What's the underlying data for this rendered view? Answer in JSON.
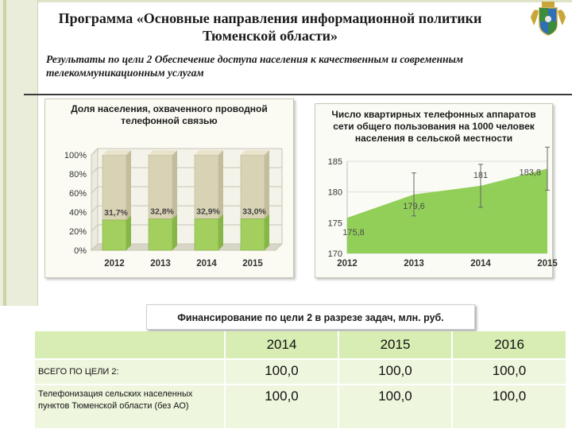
{
  "slide": {
    "title_line1": "Программа «Основные направления информационной политики",
    "title_line2": "Тюменской области»",
    "subtitle_line1": "Результаты по цели 2  Обеспечение доступа населения к качественным и современным",
    "subtitle_line2": "телекоммуникационным услугам",
    "coat_of_arms_icon": "coat-of-arms-icon"
  },
  "left_chart_title": [
    "Доля населения, охваченного  проводной",
    "телефонной связью"
  ],
  "right_chart_title": [
    "Число квартирных телефонных аппаратов",
    "сети общего пользования на 1000 человек",
    "населения в сельской местности"
  ],
  "chart_data": [
    {
      "type": "bar",
      "title": "Доля населения, охваченного  проводной телефонной связью",
      "categories": [
        "2012",
        "2013",
        "2014",
        "2015"
      ],
      "values": [
        31.7,
        32.8,
        32.9,
        33.0
      ],
      "data_labels": [
        "31,7%",
        "32,8%",
        "32,9%",
        "33,0%"
      ],
      "ylim": [
        0,
        100
      ],
      "yticks": [
        "0%",
        "20%",
        "40%",
        "60%",
        "80%",
        "100%"
      ],
      "grid": true,
      "style": "3d-stacked-percent",
      "colors": {
        "value": "#a3cf5f",
        "remainder": "#d9d3b5"
      }
    },
    {
      "type": "area",
      "title": "Число квартирных телефонных аппаратов сети общего пользования на 1000 человек населения в сельской местности",
      "x": [
        "2012",
        "2013",
        "2014",
        "2015"
      ],
      "values": [
        175.8,
        179.6,
        181,
        183.8
      ],
      "data_labels": [
        "175,8",
        "179,6",
        "181",
        "183,8"
      ],
      "ylim": [
        170,
        185
      ],
      "yticks": [
        "170",
        "175",
        "180",
        "185"
      ],
      "error_bars": true,
      "grid": true,
      "colors": {
        "area": "#8ccc50"
      }
    }
  ],
  "finance": {
    "title": "Финансирование по цели 2  в разрезе задач, млн. руб.",
    "header": [
      "",
      "2014",
      "2015",
      "2016"
    ],
    "rows": [
      {
        "label": "ВСЕГО ПО ЦЕЛИ 2:",
        "values": [
          "100,0",
          "100,0",
          "100,0"
        ]
      },
      {
        "label": "Телефонизация сельских населенных пунктов Тюменской области (без АО)",
        "values": [
          "100,0",
          "100,0",
          "100,0"
        ]
      }
    ]
  }
}
